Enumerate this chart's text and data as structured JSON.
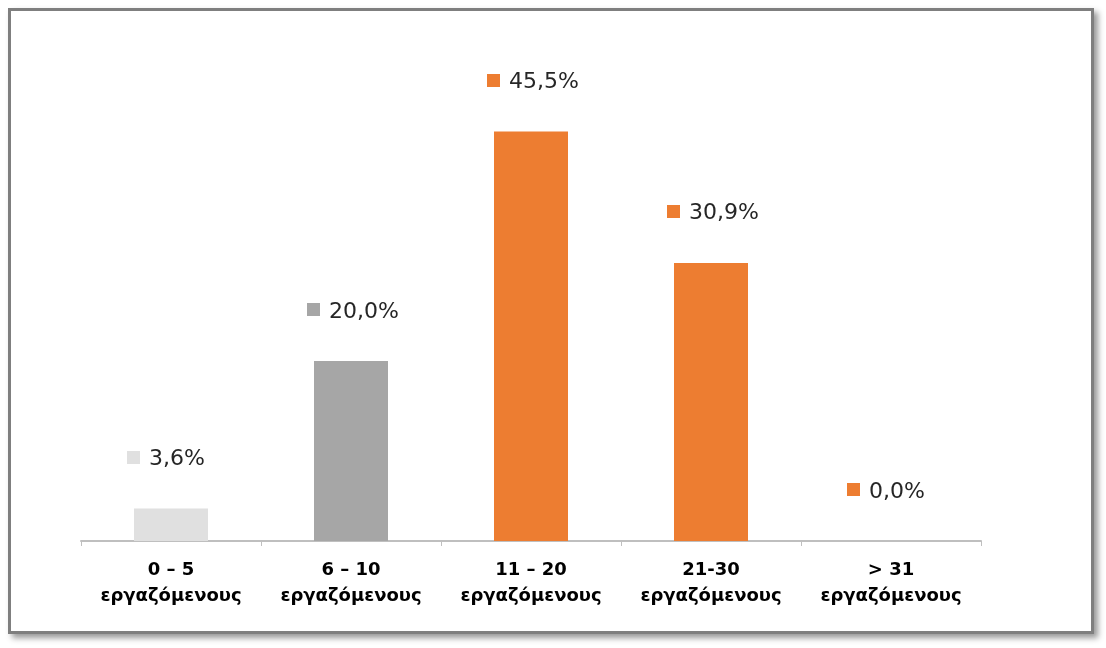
{
  "chart_data": {
    "type": "bar",
    "categories": [
      "0 – 5\nεργαζόμενους",
      "6 – 10\nεργαζόμενους",
      "11 – 20\nεργαζόμενους",
      "21-30\nεργαζόμενους",
      "> 31\nεργαζόμενους"
    ],
    "values": [
      3.6,
      20.0,
      45.5,
      30.9,
      0.0
    ],
    "colors": [
      "#e0e0e0",
      "#a6a6a6",
      "#ed7d31",
      "#ed7d31",
      "#ed7d31"
    ],
    "value_labels": [
      "3,6%",
      "20,0%",
      "45,5%",
      "30,9%",
      "0,0%"
    ]
  }
}
